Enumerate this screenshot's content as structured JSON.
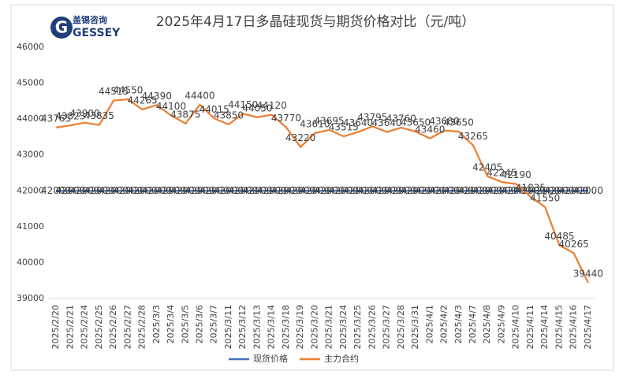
{
  "brand": {
    "cn": "盖锡咨询",
    "en": "GESSEY"
  },
  "chart_data": {
    "type": "line",
    "title": "2025年4月17日多晶硅现货与期货价格对比（元/吨）",
    "categories": [
      "2025/2/20",
      "2025/2/21",
      "2025/2/24",
      "2025/2/25",
      "2025/2/26",
      "2025/2/27",
      "2025/2/28",
      "2025/3/3",
      "2025/3/4",
      "2025/3/5",
      "2025/3/6",
      "2025/3/7",
      "2025/3/11",
      "2025/3/12",
      "2025/3/13",
      "2025/3/14",
      "2025/3/18",
      "2025/3/19",
      "2025/3/20",
      "2025/3/21",
      "2025/3/24",
      "2025/3/25",
      "2025/3/26",
      "2025/3/27",
      "2025/3/28",
      "2025/3/31",
      "2025/4/1",
      "2025/4/2",
      "2025/4/3",
      "2025/4/7",
      "2025/4/8",
      "2025/4/9",
      "2025/4/10",
      "2025/4/11",
      "2025/4/14",
      "2025/4/15",
      "2025/4/16",
      "2025/4/17"
    ],
    "series": [
      {
        "name": "现货价格",
        "color": "#4472c4",
        "values": [
          42000,
          42000,
          42000,
          42000,
          42000,
          42000,
          42000,
          42000,
          42000,
          42000,
          42000,
          42000,
          42000,
          42000,
          42000,
          42000,
          42000,
          42000,
          42000,
          42000,
          42000,
          42000,
          42000,
          42000,
          42000,
          42000,
          42000,
          42000,
          42000,
          42000,
          42000,
          42000,
          42000,
          42000,
          42000,
          42000,
          42000,
          42000
        ]
      },
      {
        "name": "主力合约",
        "color": "#ed7d31",
        "values": [
          43765,
          43823,
          43900,
          43835,
          44515,
          44550,
          44265,
          44390,
          44100,
          43875,
          44400,
          44015,
          43850,
          44150,
          44050,
          44120,
          43770,
          43220,
          43610,
          43695,
          43515,
          43640,
          43795,
          43640,
          43760,
          43650,
          43460,
          43680,
          43650,
          43265,
          42405,
          42245,
          42190,
          41835,
          41550,
          40485,
          40265,
          39440
        ]
      }
    ],
    "ylim": [
      39000,
      46000
    ],
    "yticks": [
      39000,
      40000,
      41000,
      42000,
      43000,
      44000,
      45000,
      46000
    ],
    "legend": "bottom",
    "grid": false
  }
}
